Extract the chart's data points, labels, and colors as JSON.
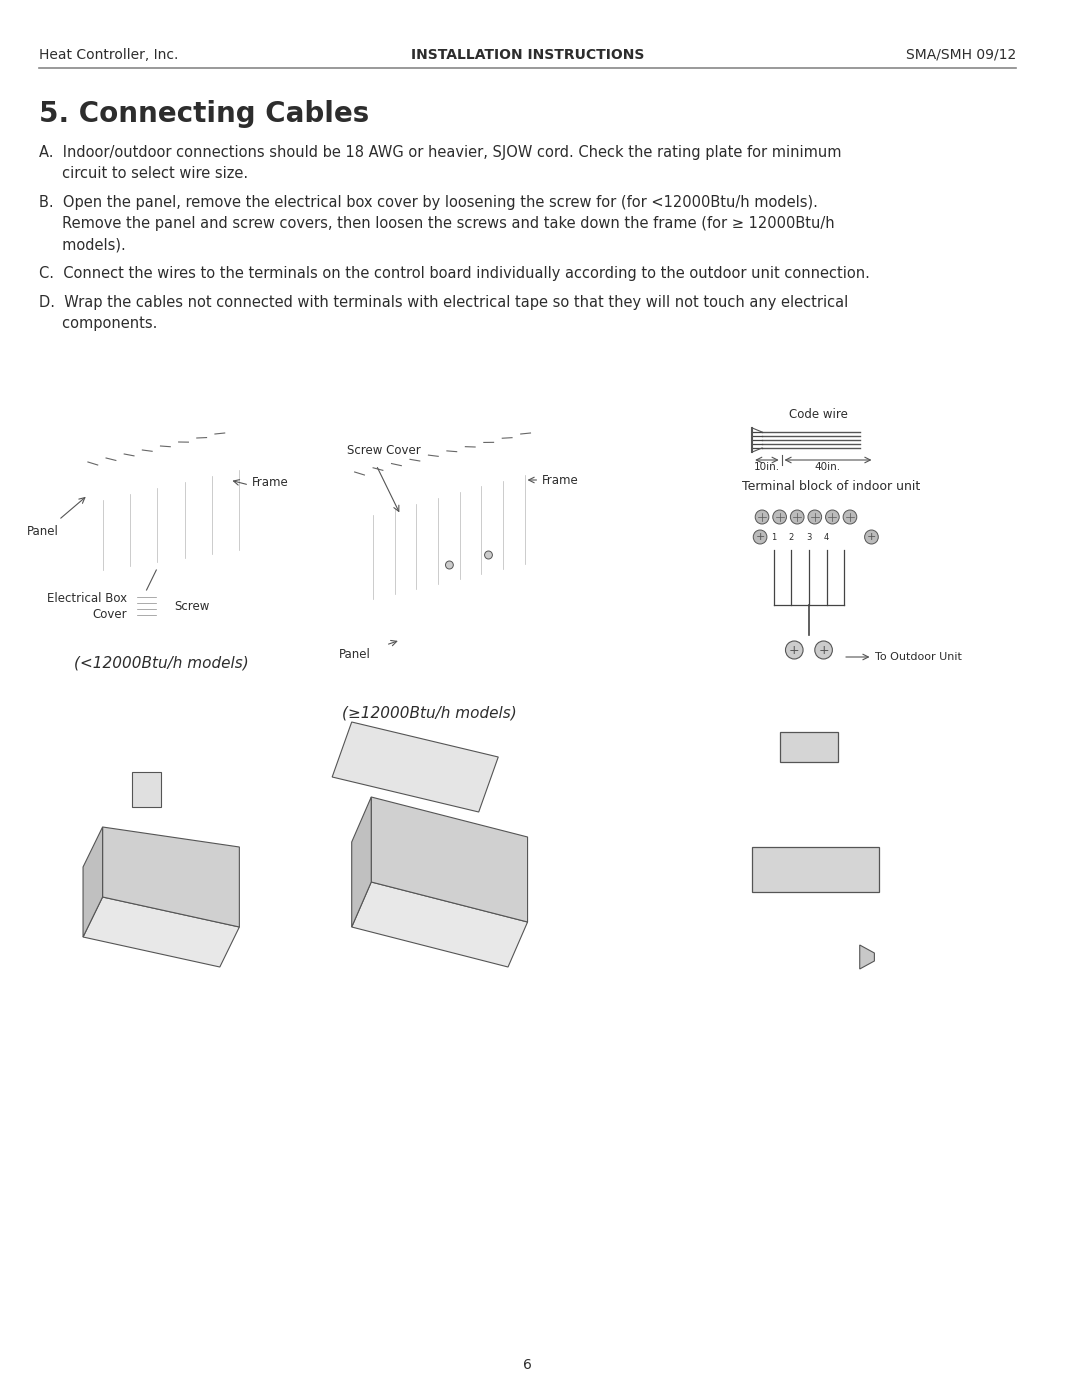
{
  "header_left": "Heat Controller, Inc.",
  "header_center": "INSTALLATION INSTRUCTIONS",
  "header_right": "SMA/SMH 09/12",
  "section_title": "5. Connecting Cables",
  "paragraphs": [
    "A.  Indoor/outdoor connections should be 18 AWG or heavier, SJOW cord. Check the rating plate for minimum\n     circuit to select wire size.",
    "B.  Open the panel, remove the electrical box cover by loosening the screw for (for <12000Btu/h models).\n     Remove the panel and screw covers, then loosen the screws and take down the frame (for ≥ 12000Btu/h\n     models).",
    "C.  Connect the wires to the terminals on the control board individually according to the outdoor unit connection.",
    "D.  Wrap the cables not connected with terminals with electrical tape so that they will not touch any electrical\n     components."
  ],
  "fig1_caption": "(<12000Btu/h models)",
  "fig2_caption": "(≥12000Btu/h models)",
  "fig3_caption1": "Terminal block of indoor unit",
  "fig3_label_code_wire": "Code wire",
  "fig3_label_10in": "10in.",
  "fig3_label_40in": "40in.",
  "fig3_label_outdoor": "To Outdoor Unit",
  "fig1_label_panel": "Panel",
  "fig1_label_frame": "Frame",
  "fig1_label_elec": "Electrical Box\nCover",
  "fig1_label_screw": "Screw",
  "fig2_label_screw_cover": "Screw Cover",
  "fig2_label_frame": "Frame",
  "fig2_label_panel": "Panel",
  "page_number": "6",
  "bg_color": "#ffffff",
  "text_color": "#2d2d2d",
  "line_color": "#555555"
}
